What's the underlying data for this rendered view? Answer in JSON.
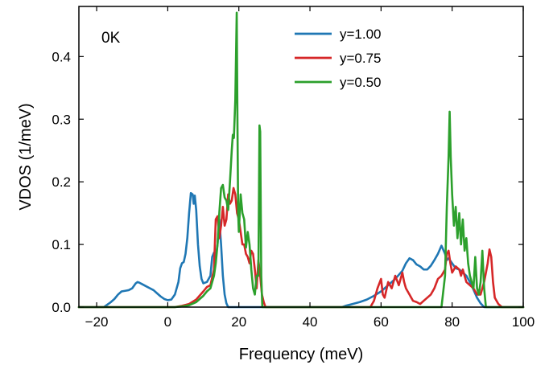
{
  "chart_data": {
    "type": "line",
    "title": "",
    "xlabel": "Frequency (meV)",
    "ylabel": "VDOS (1/meV)",
    "xlim": [
      -25,
      100
    ],
    "ylim": [
      0,
      0.48
    ],
    "xticks": [
      -20,
      0,
      20,
      40,
      60,
      80,
      100
    ],
    "xtick_labels": [
      "−20",
      "0",
      "20",
      "40",
      "60",
      "80",
      "100"
    ],
    "yticks": [
      0.0,
      0.1,
      0.2,
      0.3,
      0.4
    ],
    "ytick_labels": [
      "0.0",
      "0.1",
      "0.2",
      "0.3",
      "0.4"
    ],
    "grid": false,
    "legend_position": "top-center",
    "annotation": "0K",
    "series": [
      {
        "name": "y=1.00",
        "color": "#1f77b4",
        "points": [
          [
            -25,
            0
          ],
          [
            -18,
            0
          ],
          [
            -17,
            0.004
          ],
          [
            -16,
            0.008
          ],
          [
            -15,
            0.013
          ],
          [
            -14,
            0.02
          ],
          [
            -13,
            0.025
          ],
          [
            -12,
            0.026
          ],
          [
            -11,
            0.027
          ],
          [
            -10,
            0.03
          ],
          [
            -9,
            0.038
          ],
          [
            -8.5,
            0.04
          ],
          [
            -8,
            0.039
          ],
          [
            -7,
            0.036
          ],
          [
            -6,
            0.033
          ],
          [
            -5,
            0.03
          ],
          [
            -4,
            0.027
          ],
          [
            -3,
            0.022
          ],
          [
            -2,
            0.017
          ],
          [
            -1,
            0.013
          ],
          [
            0,
            0.011
          ],
          [
            1,
            0.012
          ],
          [
            2,
            0.02
          ],
          [
            3,
            0.04
          ],
          [
            3.5,
            0.062
          ],
          [
            4,
            0.07
          ],
          [
            4.5,
            0.072
          ],
          [
            5,
            0.085
          ],
          [
            5.5,
            0.11
          ],
          [
            6,
            0.15
          ],
          [
            6.5,
            0.182
          ],
          [
            7,
            0.18
          ],
          [
            7.3,
            0.165
          ],
          [
            7.6,
            0.178
          ],
          [
            8,
            0.155
          ],
          [
            8.5,
            0.1
          ],
          [
            9,
            0.065
          ],
          [
            9.5,
            0.045
          ],
          [
            10,
            0.038
          ],
          [
            11,
            0.04
          ],
          [
            12,
            0.05
          ],
          [
            12.5,
            0.08
          ],
          [
            13,
            0.087
          ],
          [
            13.5,
            0.08
          ],
          [
            14,
            0.1
          ],
          [
            14.5,
            0.14
          ],
          [
            15,
            0.1
          ],
          [
            15.5,
            0.05
          ],
          [
            16,
            0.02
          ],
          [
            16.5,
            0.006
          ],
          [
            17,
            0
          ],
          [
            49,
            0
          ],
          [
            50,
            0.002
          ],
          [
            52,
            0.005
          ],
          [
            54,
            0.008
          ],
          [
            56,
            0.012
          ],
          [
            58,
            0.018
          ],
          [
            60,
            0.025
          ],
          [
            62,
            0.035
          ],
          [
            64,
            0.045
          ],
          [
            66,
            0.058
          ],
          [
            67,
            0.07
          ],
          [
            68,
            0.078
          ],
          [
            69,
            0.075
          ],
          [
            70,
            0.068
          ],
          [
            71,
            0.065
          ],
          [
            72,
            0.06
          ],
          [
            73,
            0.06
          ],
          [
            74,
            0.066
          ],
          [
            75,
            0.075
          ],
          [
            76,
            0.085
          ],
          [
            77,
            0.098
          ],
          [
            78,
            0.085
          ],
          [
            78.5,
            0.075
          ],
          [
            79,
            0.078
          ],
          [
            80,
            0.07
          ],
          [
            81,
            0.062
          ],
          [
            82,
            0.06
          ],
          [
            83,
            0.055
          ],
          [
            84,
            0.05
          ],
          [
            85,
            0.04
          ],
          [
            86,
            0.028
          ],
          [
            87,
            0.015
          ],
          [
            88,
            0.006
          ],
          [
            89,
            0
          ],
          [
            100,
            0
          ]
        ]
      },
      {
        "name": "y=0.75",
        "color": "#d62728",
        "points": [
          [
            -25,
            0
          ],
          [
            2,
            0
          ],
          [
            4,
            0.002
          ],
          [
            6,
            0.005
          ],
          [
            8,
            0.012
          ],
          [
            10,
            0.025
          ],
          [
            11,
            0.032
          ],
          [
            12,
            0.035
          ],
          [
            13,
            0.06
          ],
          [
            13.5,
            0.14
          ],
          [
            14,
            0.145
          ],
          [
            14.5,
            0.11
          ],
          [
            15,
            0.13
          ],
          [
            15.5,
            0.16
          ],
          [
            16,
            0.13
          ],
          [
            16.5,
            0.14
          ],
          [
            17,
            0.18
          ],
          [
            17.5,
            0.165
          ],
          [
            18,
            0.17
          ],
          [
            18.5,
            0.19
          ],
          [
            19,
            0.18
          ],
          [
            19.5,
            0.15
          ],
          [
            20,
            0.14
          ],
          [
            20.5,
            0.12
          ],
          [
            21,
            0.1
          ],
          [
            21.5,
            0.1
          ],
          [
            22,
            0.085
          ],
          [
            22.5,
            0.08
          ],
          [
            23,
            0.07
          ],
          [
            23.5,
            0.09
          ],
          [
            24,
            0.085
          ],
          [
            24.5,
            0.06
          ],
          [
            25,
            0.03
          ],
          [
            25.5,
            0.075
          ],
          [
            26,
            0.05
          ],
          [
            26.5,
            0.02
          ],
          [
            27,
            0.008
          ],
          [
            27.5,
            0
          ],
          [
            57,
            0
          ],
          [
            58,
            0.01
          ],
          [
            59,
            0.03
          ],
          [
            60,
            0.045
          ],
          [
            60.5,
            0.02
          ],
          [
            61,
            0.015
          ],
          [
            62,
            0.04
          ],
          [
            63,
            0.03
          ],
          [
            64,
            0.05
          ],
          [
            65,
            0.035
          ],
          [
            66,
            0.055
          ],
          [
            66.5,
            0.04
          ],
          [
            67,
            0.03
          ],
          [
            68,
            0.02
          ],
          [
            69,
            0.01
          ],
          [
            70,
            0.008
          ],
          [
            71,
            0.005
          ],
          [
            72,
            0.01
          ],
          [
            73,
            0.015
          ],
          [
            74,
            0.02
          ],
          [
            75,
            0.03
          ],
          [
            76,
            0.045
          ],
          [
            77,
            0.05
          ],
          [
            78,
            0.06
          ],
          [
            78.5,
            0.085
          ],
          [
            79,
            0.09
          ],
          [
            79.5,
            0.07
          ],
          [
            80,
            0.055
          ],
          [
            81,
            0.065
          ],
          [
            82,
            0.06
          ],
          [
            82.5,
            0.05
          ],
          [
            83,
            0.06
          ],
          [
            84,
            0.04
          ],
          [
            85,
            0.035
          ],
          [
            86,
            0.03
          ],
          [
            87,
            0.02
          ],
          [
            88,
            0.02
          ],
          [
            89,
            0.04
          ],
          [
            90,
            0.07
          ],
          [
            90.5,
            0.092
          ],
          [
            91,
            0.08
          ],
          [
            91.5,
            0.04
          ],
          [
            92,
            0.015
          ],
          [
            93,
            0.005
          ],
          [
            94,
            0
          ],
          [
            100,
            0
          ]
        ]
      },
      {
        "name": "y=0.50",
        "color": "#2ca02c",
        "points": [
          [
            -25,
            0
          ],
          [
            2,
            0
          ],
          [
            4,
            0.001
          ],
          [
            6,
            0.003
          ],
          [
            8,
            0.008
          ],
          [
            10,
            0.018
          ],
          [
            11,
            0.025
          ],
          [
            12,
            0.03
          ],
          [
            12.5,
            0.04
          ],
          [
            13,
            0.05
          ],
          [
            13.5,
            0.07
          ],
          [
            14,
            0.1
          ],
          [
            14.5,
            0.15
          ],
          [
            15,
            0.19
          ],
          [
            15.5,
            0.195
          ],
          [
            16,
            0.175
          ],
          [
            16.5,
            0.17
          ],
          [
            17,
            0.155
          ],
          [
            17.5,
            0.2
          ],
          [
            18,
            0.25
          ],
          [
            18.3,
            0.275
          ],
          [
            18.6,
            0.27
          ],
          [
            19,
            0.33
          ],
          [
            19.2,
            0.4
          ],
          [
            19.4,
            0.47
          ],
          [
            19.6,
            0.3
          ],
          [
            19.8,
            0.15
          ],
          [
            20,
            0.12
          ],
          [
            20.5,
            0.18
          ],
          [
            21,
            0.15
          ],
          [
            21.5,
            0.14
          ],
          [
            22,
            0.095
          ],
          [
            22.5,
            0.12
          ],
          [
            23,
            0.1
          ],
          [
            23.5,
            0.06
          ],
          [
            24,
            0.03
          ],
          [
            24.5,
            0.02
          ],
          [
            25,
            0.05
          ],
          [
            25.5,
            0.05
          ],
          [
            25.8,
            0.29
          ],
          [
            26,
            0.28
          ],
          [
            26.3,
            0.05
          ],
          [
            26.6,
            0
          ],
          [
            77,
            0
          ],
          [
            78,
            0.05
          ],
          [
            78.5,
            0.16
          ],
          [
            79,
            0.24
          ],
          [
            79.3,
            0.312
          ],
          [
            79.6,
            0.24
          ],
          [
            80,
            0.18
          ],
          [
            80.5,
            0.13
          ],
          [
            81,
            0.16
          ],
          [
            81.5,
            0.11
          ],
          [
            82,
            0.15
          ],
          [
            82.5,
            0.1
          ],
          [
            83,
            0.14
          ],
          [
            83.5,
            0.09
          ],
          [
            84,
            0.11
          ],
          [
            84.5,
            0.07
          ],
          [
            85,
            0.05
          ],
          [
            86,
            0.03
          ],
          [
            86.5,
            0.08
          ],
          [
            87,
            0.03
          ],
          [
            87.5,
            0.02
          ],
          [
            88,
            0.04
          ],
          [
            88.5,
            0.09
          ],
          [
            89,
            0.03
          ],
          [
            89.5,
            0
          ],
          [
            100,
            0
          ]
        ]
      }
    ]
  }
}
